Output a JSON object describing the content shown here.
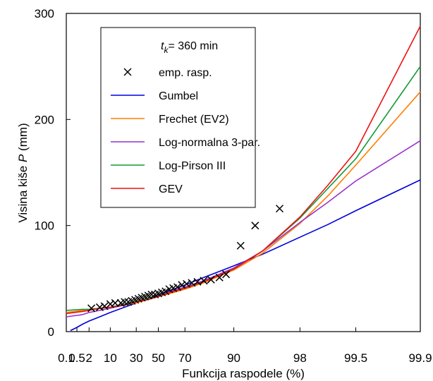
{
  "chart_data": {
    "type": "line",
    "title": "",
    "legend_title": {
      "base": "t",
      "sub": "k",
      "rest": "= 360 min"
    },
    "xlabel": "Funkcija raspodele (%)",
    "ylabel": {
      "prefix": "Visina kiše ",
      "italic": "P",
      "suffix": " (mm)"
    },
    "ylim": [
      0,
      300
    ],
    "xlim": [
      0.1,
      99.9
    ],
    "x_scale": "gumbel-probability",
    "xticks": [
      0.1,
      0.5,
      2,
      10,
      30,
      50,
      70,
      90,
      98,
      99.5,
      99.9
    ],
    "xtick_labels": [
      "0.1",
      "0.5",
      "2",
      "10",
      "30",
      "50",
      "70",
      "90",
      "98",
      "99.5",
      "99.9"
    ],
    "yticks": [
      0,
      100,
      200,
      300
    ],
    "ytick_labels": [
      "0",
      "100",
      "200",
      "300"
    ],
    "grid": false,
    "legend_position": "top-left",
    "empirical": {
      "name": "emp. rasp.",
      "marker": "x",
      "points": [
        [
          2.5,
          22
        ],
        [
          5,
          23
        ],
        [
          7,
          24
        ],
        [
          10,
          26
        ],
        [
          13,
          27
        ],
        [
          17,
          27
        ],
        [
          20,
          28
        ],
        [
          23,
          28
        ],
        [
          26,
          29
        ],
        [
          29,
          30
        ],
        [
          32,
          31
        ],
        [
          35,
          32
        ],
        [
          38,
          33
        ],
        [
          41,
          34
        ],
        [
          44,
          35
        ],
        [
          47,
          35
        ],
        [
          50,
          36
        ],
        [
          53,
          37
        ],
        [
          56,
          38
        ],
        [
          59,
          40
        ],
        [
          62,
          41
        ],
        [
          65,
          42
        ],
        [
          68,
          44
        ],
        [
          71,
          45
        ],
        [
          74,
          46
        ],
        [
          77,
          47
        ],
        [
          80,
          48
        ],
        [
          83,
          49
        ],
        [
          86,
          51
        ],
        [
          88,
          54
        ],
        [
          91.5,
          81
        ],
        [
          94,
          100
        ],
        [
          96.7,
          116
        ]
      ]
    },
    "series": [
      {
        "name": "Gumbel",
        "color": "#0000dd",
        "x": [
          0.2,
          0.5,
          1,
          2,
          5,
          10,
          20,
          30,
          40,
          50,
          60,
          70,
          80,
          90,
          95,
          98,
          99,
          99.5,
          99.9
        ],
        "values": [
          1,
          4,
          7,
          10,
          14,
          18,
          23,
          27,
          31,
          35,
          39,
          44,
          51,
          62,
          73,
          89,
          101,
          114,
          143
        ]
      },
      {
        "name": "Frechet (EV2)",
        "color": "#ff7f00",
        "x": [
          0.1,
          1,
          2,
          5,
          10,
          20,
          30,
          40,
          50,
          60,
          70,
          80,
          90,
          95,
          98,
          99,
          99.5,
          99.9
        ],
        "values": [
          18,
          20,
          21,
          22,
          23,
          25,
          27,
          30,
          33,
          36,
          40,
          46,
          58,
          74,
          102,
          128,
          157,
          226
        ]
      },
      {
        "name": "Log-normalna 3-par.",
        "color": "#9933cc",
        "x": [
          0.1,
          1,
          2,
          5,
          10,
          20,
          30,
          40,
          50,
          60,
          70,
          80,
          90,
          95,
          98,
          99,
          99.5,
          99.9
        ],
        "values": [
          14,
          16,
          18,
          20,
          22,
          25,
          28,
          31,
          34,
          38,
          42,
          48,
          60,
          76,
          103,
          122,
          142,
          180
        ]
      },
      {
        "name": "Log-Pirson III",
        "color": "#119933",
        "x": [
          0.1,
          1,
          2,
          5,
          10,
          20,
          30,
          40,
          50,
          60,
          70,
          80,
          90,
          95,
          98,
          99,
          99.5,
          99.9
        ],
        "values": [
          20,
          21,
          21,
          22,
          23,
          26,
          28,
          31,
          34,
          37,
          41,
          47,
          59,
          76,
          107,
          135,
          163,
          250
        ]
      },
      {
        "name": "GEV",
        "color": "#ee1111",
        "x": [
          0.1,
          1,
          2,
          5,
          10,
          20,
          30,
          40,
          50,
          60,
          70,
          80,
          90,
          95,
          98,
          99,
          99.5,
          99.9
        ],
        "values": [
          17,
          19,
          20,
          22,
          23,
          25,
          28,
          30,
          33,
          37,
          41,
          47,
          59,
          76,
          108,
          138,
          170,
          288
        ]
      }
    ]
  }
}
